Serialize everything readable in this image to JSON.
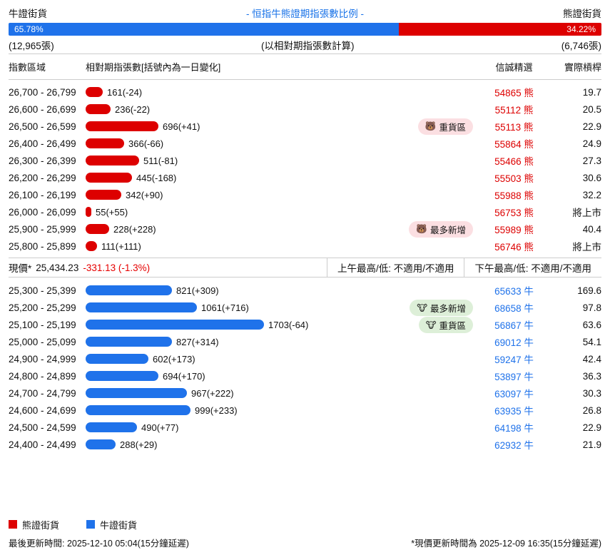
{
  "colors": {
    "bull": "#1f72ea",
    "bear": "#dd0000",
    "title": "#1a73e8",
    "negative": "#e60000"
  },
  "header": {
    "left_label": "牛證街貨",
    "title": "- 恒指牛熊證期指張數比例 -",
    "right_label": "熊證街貨",
    "bull_pct": "65.78%",
    "bear_pct": "34.22%",
    "bull_total": "(12,965張)",
    "note": "(以相對期指張數計算)",
    "bear_total": "(6,746張)"
  },
  "table": {
    "col_range": "指數區域",
    "col_bar": "相對期指張數[括號內為一日變化]",
    "col_pick": "信誠精選",
    "col_leverage": "實際槓桿"
  },
  "current": {
    "label": "現價*",
    "price": "25,434.23",
    "change": "-331.13 (-1.3%)",
    "am": "上午最高/低: 不適用/不適用",
    "pm": "下午最高/低: 不適用/不適用"
  },
  "legend": {
    "bear": "熊證街貨",
    "bull": "牛證街貨"
  },
  "footer": {
    "left": "最後更新時間: 2025-12-10 05:04(15分鐘延遲)",
    "right": "*現價更新時間為 2025-12-09 16:35(15分鐘延遲)"
  },
  "chart_data": {
    "type": "bar",
    "title": "恒指牛熊證期指張數比例",
    "unit": "相對期指張數(張)",
    "max_value": 1703,
    "bull_bear_ratio": {
      "bull_pct": 65.78,
      "bear_pct": 34.22,
      "bull_contracts": 12965,
      "bear_contracts": 6746
    },
    "series": [
      {
        "key": "bear",
        "name": "熊證街貨",
        "color": "#dd0000",
        "rows": [
          {
            "range": "26,700 - 26,799",
            "value": 161,
            "change": -24,
            "code": "54865 熊",
            "leverage": "19.7"
          },
          {
            "range": "26,600 - 26,699",
            "value": 236,
            "change": -22,
            "code": "55112 熊",
            "leverage": "20.5"
          },
          {
            "range": "26,500 - 26,599",
            "value": 696,
            "change": 41,
            "badge": {
              "emoji": "🐻",
              "label": "重貨區"
            },
            "code": "55113 熊",
            "leverage": "22.9"
          },
          {
            "range": "26,400 - 26,499",
            "value": 366,
            "change": -66,
            "code": "55864 熊",
            "leverage": "24.9"
          },
          {
            "range": "26,300 - 26,399",
            "value": 511,
            "change": -81,
            "code": "55466 熊",
            "leverage": "27.3"
          },
          {
            "range": "26,200 - 26,299",
            "value": 445,
            "change": -168,
            "code": "55503 熊",
            "leverage": "30.6"
          },
          {
            "range": "26,100 - 26,199",
            "value": 342,
            "change": 90,
            "code": "55988 熊",
            "leverage": "32.2"
          },
          {
            "range": "26,000 - 26,099",
            "value": 55,
            "change": 55,
            "code": "56753 熊",
            "leverage": "將上市"
          },
          {
            "range": "25,900 - 25,999",
            "value": 228,
            "change": 228,
            "badge": {
              "emoji": "🐻",
              "label": "最多新增"
            },
            "code": "55989 熊",
            "leverage": "40.4"
          },
          {
            "range": "25,800 - 25,899",
            "value": 111,
            "change": 111,
            "code": "56746 熊",
            "leverage": "將上市"
          }
        ]
      },
      {
        "key": "bull",
        "name": "牛證街貨",
        "color": "#1f72ea",
        "rows": [
          {
            "range": "25,300 - 25,399",
            "value": 821,
            "change": 309,
            "code": "65633 牛",
            "leverage": "169.6"
          },
          {
            "range": "25,200 - 25,299",
            "value": 1061,
            "change": 716,
            "badge": {
              "emoji": "🐮",
              "label": "最多新增"
            },
            "code": "68658 牛",
            "leverage": "97.8"
          },
          {
            "range": "25,100 - 25,199",
            "value": 1703,
            "change": -64,
            "badge": {
              "emoji": "🐮",
              "label": "重貨區"
            },
            "code": "56867 牛",
            "leverage": "63.6"
          },
          {
            "range": "25,000 - 25,099",
            "value": 827,
            "change": 314,
            "code": "69012 牛",
            "leverage": "54.1"
          },
          {
            "range": "24,900 - 24,999",
            "value": 602,
            "change": 173,
            "code": "59247 牛",
            "leverage": "42.4"
          },
          {
            "range": "24,800 - 24,899",
            "value": 694,
            "change": 170,
            "code": "53897 牛",
            "leverage": "36.3"
          },
          {
            "range": "24,700 - 24,799",
            "value": 967,
            "change": 222,
            "code": "63097 牛",
            "leverage": "30.3"
          },
          {
            "range": "24,600 - 24,699",
            "value": 999,
            "change": 233,
            "code": "63935 牛",
            "leverage": "26.8"
          },
          {
            "range": "24,500 - 24,599",
            "value": 490,
            "change": 77,
            "code": "64198 牛",
            "leverage": "22.9"
          },
          {
            "range": "24,400 - 24,499",
            "value": 288,
            "change": 29,
            "code": "62932 牛",
            "leverage": "21.9"
          }
        ]
      }
    ]
  }
}
